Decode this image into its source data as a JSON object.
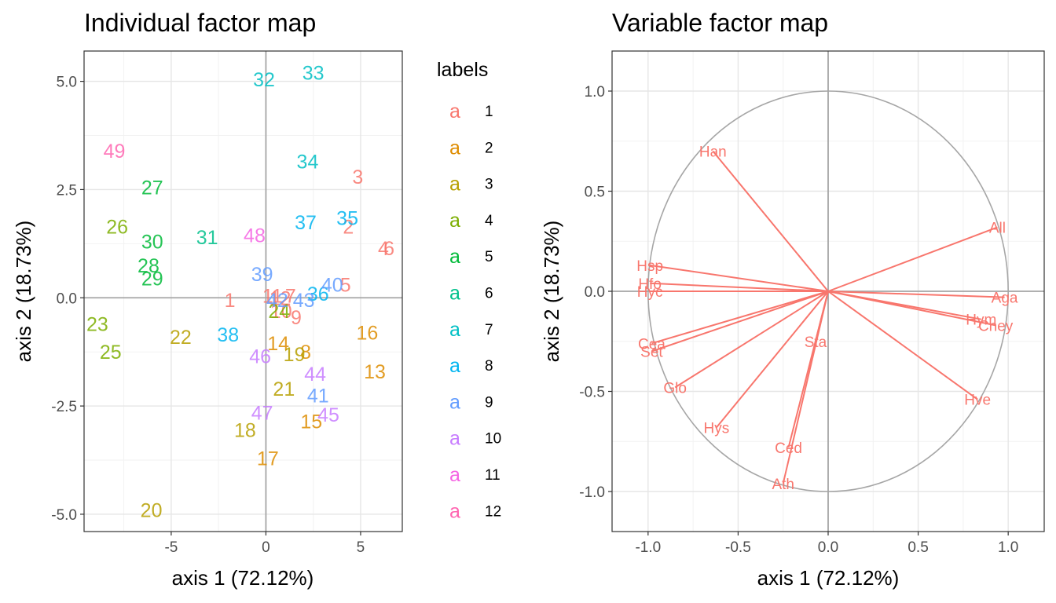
{
  "chart_data": [
    {
      "type": "scatter",
      "title": "Individual factor map",
      "xlabel": "axis 1 (72.12%)",
      "ylabel": "axis 2 (18.73%)",
      "xlim": [
        -9.6,
        7.2
      ],
      "ylim": [
        -5.4,
        5.7
      ],
      "xticks": [
        -5,
        0,
        5
      ],
      "xtick_labels": [
        "-5",
        "0",
        "5"
      ],
      "yticks": [
        -5,
        -2.5,
        0,
        2.5,
        5
      ],
      "ytick_labels": [
        "-5.0",
        "-2.5",
        "0.0",
        "2.5",
        "5.0"
      ],
      "grid": true,
      "reference_lines": {
        "x": 0,
        "y": 0
      },
      "legend": {
        "title": "labels",
        "position": "right",
        "key_glyph": "a",
        "entries": [
          "1",
          "2",
          "3",
          "4",
          "5",
          "6",
          "7",
          "8",
          "9",
          "10",
          "11",
          "12"
        ],
        "colors": [
          "#F8766D",
          "#DE8C00",
          "#B79F00",
          "#7CAE00",
          "#00BA38",
          "#00C08B",
          "#00BFC4",
          "#00B4F0",
          "#619CFF",
          "#C77CFF",
          "#F564E3",
          "#FF64B0"
        ]
      },
      "points": [
        {
          "label": "1",
          "x": -1.9,
          "y": -0.05,
          "group": 0
        },
        {
          "label": "2",
          "x": 4.35,
          "y": 1.65,
          "group": 0
        },
        {
          "label": "3",
          "x": 4.85,
          "y": 2.8,
          "group": 0
        },
        {
          "label": "4",
          "x": 6.2,
          "y": 1.15,
          "group": 0
        },
        {
          "label": "5",
          "x": 4.2,
          "y": 0.3,
          "group": 0
        },
        {
          "label": "6",
          "x": 6.5,
          "y": 1.15,
          "group": 0
        },
        {
          "label": "7",
          "x": 1.3,
          "y": 0.05,
          "group": 0
        },
        {
          "label": "8",
          "x": 2.1,
          "y": -1.25,
          "group": 1
        },
        {
          "label": "9",
          "x": 1.6,
          "y": -0.45,
          "group": 0
        },
        {
          "label": "10",
          "x": 0.8,
          "y": -0.3,
          "group": 0
        },
        {
          "label": "11",
          "x": 0.35,
          "y": 0.05,
          "group": 0
        },
        {
          "label": "12",
          "x": 0.75,
          "y": 0.0,
          "group": 0
        },
        {
          "label": "13",
          "x": 5.75,
          "y": -1.7,
          "group": 1
        },
        {
          "label": "14",
          "x": 0.65,
          "y": -1.05,
          "group": 1
        },
        {
          "label": "15",
          "x": 2.4,
          "y": -2.85,
          "group": 1
        },
        {
          "label": "16",
          "x": 5.35,
          "y": -0.8,
          "group": 1
        },
        {
          "label": "17",
          "x": 0.1,
          "y": -3.7,
          "group": 1
        },
        {
          "label": "18",
          "x": -1.1,
          "y": -3.05,
          "group": 2
        },
        {
          "label": "19",
          "x": 1.5,
          "y": -1.3,
          "group": 2
        },
        {
          "label": "20",
          "x": -6.05,
          "y": -4.9,
          "group": 2
        },
        {
          "label": "21",
          "x": 0.95,
          "y": -2.1,
          "group": 2
        },
        {
          "label": "22",
          "x": -4.5,
          "y": -0.9,
          "group": 2
        },
        {
          "label": "23",
          "x": -8.9,
          "y": -0.6,
          "group": 3
        },
        {
          "label": "24",
          "x": 0.7,
          "y": -0.3,
          "group": 3
        },
        {
          "label": "25",
          "x": -8.2,
          "y": -1.25,
          "group": 3
        },
        {
          "label": "26",
          "x": -7.85,
          "y": 1.65,
          "group": 3
        },
        {
          "label": "27",
          "x": -6.0,
          "y": 2.55,
          "group": 4
        },
        {
          "label": "28",
          "x": -6.2,
          "y": 0.75,
          "group": 4
        },
        {
          "label": "29",
          "x": -6.0,
          "y": 0.45,
          "group": 4
        },
        {
          "label": "30",
          "x": -6.0,
          "y": 1.3,
          "group": 4
        },
        {
          "label": "31",
          "x": -3.1,
          "y": 1.4,
          "group": 5
        },
        {
          "label": "32",
          "x": -0.1,
          "y": 5.05,
          "group": 6
        },
        {
          "label": "33",
          "x": 2.5,
          "y": 5.2,
          "group": 6
        },
        {
          "label": "34",
          "x": 2.2,
          "y": 3.15,
          "group": 6
        },
        {
          "label": "35",
          "x": 4.3,
          "y": 1.85,
          "group": 7
        },
        {
          "label": "36",
          "x": 2.75,
          "y": 0.1,
          "group": 7
        },
        {
          "label": "37",
          "x": 2.1,
          "y": 1.75,
          "group": 7
        },
        {
          "label": "38",
          "x": -2.0,
          "y": -0.85,
          "group": 7
        },
        {
          "label": "39",
          "x": -0.2,
          "y": 0.55,
          "group": 8
        },
        {
          "label": "40",
          "x": 3.5,
          "y": 0.3,
          "group": 8
        },
        {
          "label": "41",
          "x": 2.75,
          "y": -2.25,
          "group": 8
        },
        {
          "label": "42",
          "x": 0.6,
          "y": -0.05,
          "group": 8
        },
        {
          "label": "43",
          "x": 2.0,
          "y": -0.05,
          "group": 8
        },
        {
          "label": "44",
          "x": 2.6,
          "y": -1.75,
          "group": 9
        },
        {
          "label": "45",
          "x": 3.3,
          "y": -2.7,
          "group": 9
        },
        {
          "label": "46",
          "x": -0.3,
          "y": -1.35,
          "group": 9
        },
        {
          "label": "47",
          "x": -0.2,
          "y": -2.65,
          "group": 9
        },
        {
          "label": "48",
          "x": -0.6,
          "y": 1.45,
          "group": 10
        },
        {
          "label": "49",
          "x": -8.0,
          "y": 3.4,
          "group": 11
        }
      ]
    },
    {
      "type": "scatter",
      "title": "Variable factor map",
      "xlabel": "axis 1 (72.12%)",
      "ylabel": "axis 2 (18.73%)",
      "xlim": [
        -1.2,
        1.2
      ],
      "ylim": [
        -1.2,
        1.2
      ],
      "xticks": [
        -1,
        -0.5,
        0,
        0.5,
        1
      ],
      "xtick_labels": [
        "-1.0",
        "-0.5",
        "0.0",
        "0.5",
        "1.0"
      ],
      "yticks": [
        -1,
        -0.5,
        0,
        0.5,
        1
      ],
      "ytick_labels": [
        "-1.0",
        "-0.5",
        "0.0",
        "0.5",
        "1.0"
      ],
      "grid": true,
      "unit_circle": true,
      "arrow_color": "#F8766D",
      "circle_color": "#A6A6A6",
      "variables": [
        {
          "name": "Han",
          "x": -0.64,
          "y": 0.7
        },
        {
          "name": "All",
          "x": 0.94,
          "y": 0.32
        },
        {
          "name": "Hsp",
          "x": -0.99,
          "y": 0.13
        },
        {
          "name": "Hfo",
          "x": -0.99,
          "y": 0.04
        },
        {
          "name": "Hyc",
          "x": -0.99,
          "y": 0.0
        },
        {
          "name": "Aga",
          "x": 0.98,
          "y": -0.03
        },
        {
          "name": "Hym",
          "x": 0.85,
          "y": -0.14
        },
        {
          "name": "Cney",
          "x": 0.93,
          "y": -0.17
        },
        {
          "name": "Cea",
          "x": -0.98,
          "y": -0.26
        },
        {
          "name": "Set",
          "x": -0.98,
          "y": -0.3
        },
        {
          "name": "Sta",
          "x": -0.07,
          "y": -0.25
        },
        {
          "name": "Glo",
          "x": -0.85,
          "y": -0.48
        },
        {
          "name": "Hve",
          "x": 0.83,
          "y": -0.54
        },
        {
          "name": "Hys",
          "x": -0.62,
          "y": -0.68
        },
        {
          "name": "Ced",
          "x": -0.22,
          "y": -0.78
        },
        {
          "name": "Ath",
          "x": -0.25,
          "y": -0.96
        }
      ]
    }
  ]
}
